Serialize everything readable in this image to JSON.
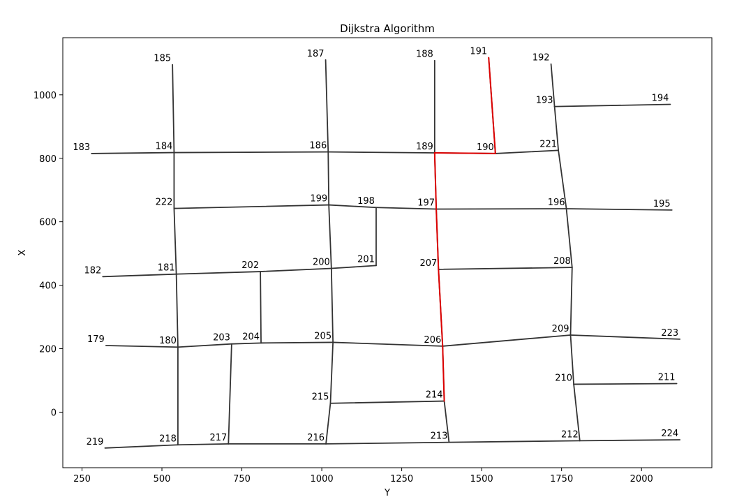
{
  "chart_data": {
    "type": "line",
    "title": "Dijkstra Algorithm",
    "xlabel": "Y",
    "ylabel": "X",
    "xlim": [
      190,
      2220
    ],
    "ylim": [
      -175,
      1180
    ],
    "xticks": [
      250,
      500,
      750,
      1000,
      1250,
      1500,
      1750,
      2000
    ],
    "yticks": [
      0,
      200,
      400,
      600,
      800,
      1000
    ],
    "grid": false,
    "colors": {
      "edge": "#333333",
      "path": "#dd0000"
    },
    "nodes": [
      {
        "id": "179",
        "x": 325,
        "y": 210
      },
      {
        "id": "180",
        "x": 550,
        "y": 205
      },
      {
        "id": "181",
        "x": 545,
        "y": 435
      },
      {
        "id": "182",
        "x": 315,
        "y": 427
      },
      {
        "id": "183",
        "x": 280,
        "y": 815
      },
      {
        "id": "184",
        "x": 538,
        "y": 818
      },
      {
        "id": "185",
        "x": 533,
        "y": 1095
      },
      {
        "id": "186",
        "x": 1020,
        "y": 820
      },
      {
        "id": "187",
        "x": 1012,
        "y": 1110
      },
      {
        "id": "188",
        "x": 1353,
        "y": 1108
      },
      {
        "id": "189",
        "x": 1353,
        "y": 817
      },
      {
        "id": "190",
        "x": 1543,
        "y": 815
      },
      {
        "id": "191",
        "x": 1522,
        "y": 1117
      },
      {
        "id": "192",
        "x": 1717,
        "y": 1097
      },
      {
        "id": "193",
        "x": 1728,
        "y": 963
      },
      {
        "id": "194",
        "x": 2090,
        "y": 970
      },
      {
        "id": "195",
        "x": 2095,
        "y": 637
      },
      {
        "id": "196",
        "x": 1765,
        "y": 641
      },
      {
        "id": "197",
        "x": 1358,
        "y": 640
      },
      {
        "id": "198",
        "x": 1170,
        "y": 645
      },
      {
        "id": "199",
        "x": 1022,
        "y": 653
      },
      {
        "id": "200",
        "x": 1030,
        "y": 453
      },
      {
        "id": "201",
        "x": 1170,
        "y": 462
      },
      {
        "id": "202",
        "x": 808,
        "y": 443
      },
      {
        "id": "203",
        "x": 718,
        "y": 215
      },
      {
        "id": "204",
        "x": 810,
        "y": 218
      },
      {
        "id": "205",
        "x": 1035,
        "y": 220
      },
      {
        "id": "206",
        "x": 1378,
        "y": 208
      },
      {
        "id": "207",
        "x": 1365,
        "y": 450
      },
      {
        "id": "208",
        "x": 1783,
        "y": 456
      },
      {
        "id": "209",
        "x": 1778,
        "y": 243
      },
      {
        "id": "210",
        "x": 1788,
        "y": 88
      },
      {
        "id": "211",
        "x": 2110,
        "y": 90
      },
      {
        "id": "212",
        "x": 1807,
        "y": -90
      },
      {
        "id": "213",
        "x": 1398,
        "y": -95
      },
      {
        "id": "214",
        "x": 1383,
        "y": 35
      },
      {
        "id": "215",
        "x": 1027,
        "y": 28
      },
      {
        "id": "216",
        "x": 1013,
        "y": -100
      },
      {
        "id": "217",
        "x": 708,
        "y": -100
      },
      {
        "id": "218",
        "x": 550,
        "y": -103
      },
      {
        "id": "219",
        "x": 322,
        "y": -113
      },
      {
        "id": "221",
        "x": 1740,
        "y": 825
      },
      {
        "id": "222",
        "x": 538,
        "y": 642
      },
      {
        "id": "223",
        "x": 2120,
        "y": 230
      },
      {
        "id": "224",
        "x": 2120,
        "y": -87
      }
    ],
    "edges": [
      [
        "179",
        "180"
      ],
      [
        "180",
        "203"
      ],
      [
        "203",
        "204"
      ],
      [
        "204",
        "205"
      ],
      [
        "205",
        "206"
      ],
      [
        "206",
        "209"
      ],
      [
        "209",
        "223"
      ],
      [
        "182",
        "181"
      ],
      [
        "181",
        "202"
      ],
      [
        "202",
        "200"
      ],
      [
        "200",
        "201"
      ],
      [
        "183",
        "184"
      ],
      [
        "184",
        "186"
      ],
      [
        "186",
        "189"
      ],
      [
        "189",
        "190"
      ],
      [
        "190",
        "221"
      ],
      [
        "222",
        "199"
      ],
      [
        "199",
        "198"
      ],
      [
        "198",
        "197"
      ],
      [
        "197",
        "196"
      ],
      [
        "196",
        "195"
      ],
      [
        "193",
        "194"
      ],
      [
        "207",
        "208"
      ],
      [
        "210",
        "211"
      ],
      [
        "215",
        "214"
      ],
      [
        "219",
        "218"
      ],
      [
        "218",
        "217"
      ],
      [
        "217",
        "216"
      ],
      [
        "216",
        "213"
      ],
      [
        "213",
        "212"
      ],
      [
        "212",
        "224"
      ],
      [
        "185",
        "184"
      ],
      [
        "184",
        "222"
      ],
      [
        "222",
        "181"
      ],
      [
        "181",
        "180"
      ],
      [
        "180",
        "218"
      ],
      [
        "203",
        "217"
      ],
      [
        "202",
        "204"
      ],
      [
        "187",
        "186"
      ],
      [
        "186",
        "199"
      ],
      [
        "199",
        "200"
      ],
      [
        "200",
        "205"
      ],
      [
        "205",
        "215"
      ],
      [
        "215",
        "216"
      ],
      [
        "198",
        "201"
      ],
      [
        "188",
        "189"
      ],
      [
        "189",
        "197"
      ],
      [
        "197",
        "207"
      ],
      [
        "207",
        "206"
      ],
      [
        "206",
        "214"
      ],
      [
        "214",
        "213"
      ],
      [
        "191",
        "190"
      ],
      [
        "192",
        "193"
      ],
      [
        "193",
        "221"
      ],
      [
        "221",
        "196"
      ],
      [
        "196",
        "208"
      ],
      [
        "208",
        "209"
      ],
      [
        "209",
        "210"
      ],
      [
        "210",
        "212"
      ]
    ],
    "path": [
      "191",
      "190",
      "189",
      "197",
      "207",
      "206",
      "214"
    ]
  }
}
